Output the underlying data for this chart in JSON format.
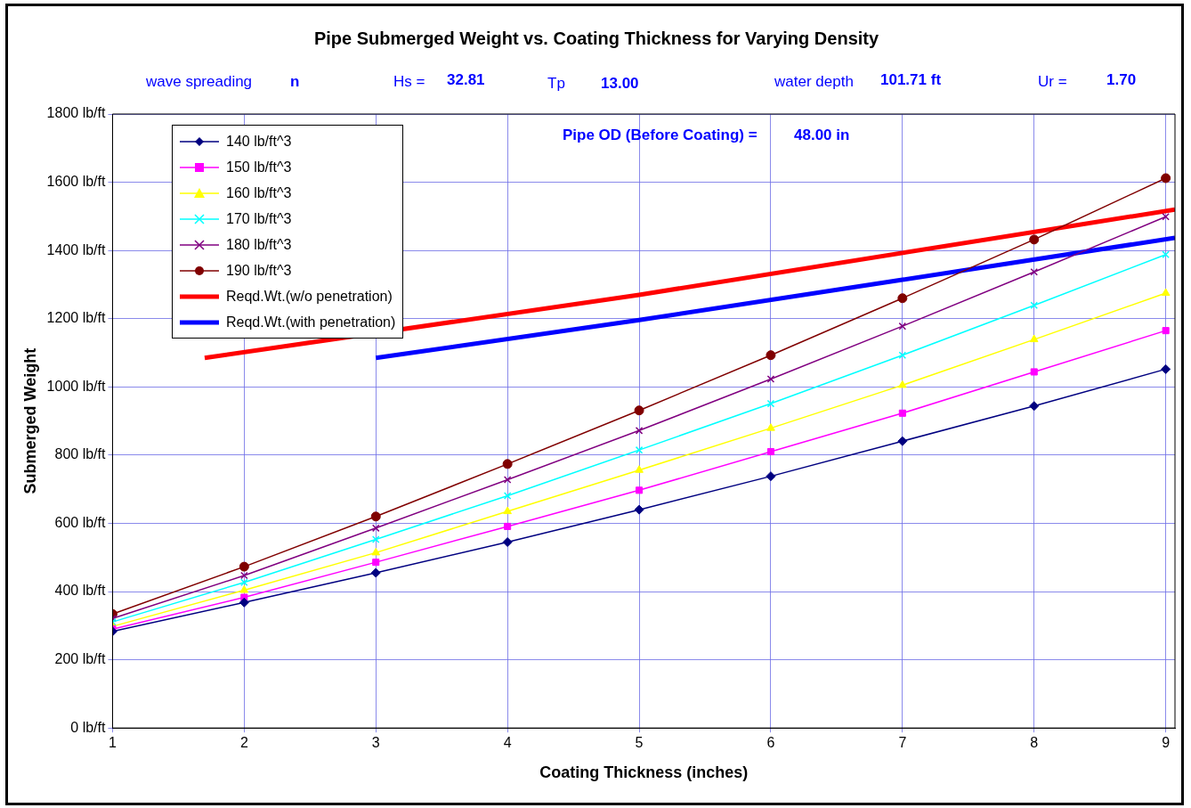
{
  "chart_data": {
    "type": "line",
    "title": "Pipe Submerged Weight vs. Coating Thickness for Varying Density",
    "xlabel": "Coating Thickness (inches)",
    "ylabel": "Submerged Weight",
    "x": [
      1,
      2,
      3,
      4,
      5,
      6,
      7,
      8,
      9
    ],
    "series": [
      {
        "name": "140 lb/ft^3",
        "color": "#000080",
        "marker": "diamond",
        "values": [
          283,
          368,
          455,
          545,
          640,
          738,
          841,
          944,
          1052
        ]
      },
      {
        "name": "150 lb/ft^3",
        "color": "#ff00ff",
        "marker": "square",
        "values": [
          290,
          383,
          486,
          591,
          697,
          810,
          923,
          1044,
          1165
        ]
      },
      {
        "name": "160 lb/ft^3",
        "color": "#ffff00",
        "marker": "triangle",
        "values": [
          298,
          404,
          514,
          635,
          756,
          879,
          1005,
          1139,
          1275
        ]
      },
      {
        "name": "170 lb/ft^3",
        "color": "#00ffff",
        "marker": "cross",
        "values": [
          311,
          427,
          553,
          681,
          815,
          951,
          1093,
          1239,
          1388
        ]
      },
      {
        "name": "180 lb/ft^3",
        "color": "#800080",
        "marker": "cross",
        "values": [
          321,
          447,
          586,
          728,
          872,
          1023,
          1178,
          1337,
          1499
        ]
      },
      {
        "name": "190 lb/ft^3",
        "color": "#800000",
        "marker": "circle",
        "values": [
          334,
          473,
          620,
          774,
          931,
          1093,
          1260,
          1432,
          1612
        ]
      },
      {
        "name": "Reqd.Wt.(w/o penetration)",
        "color": "#ff0000",
        "marker": "none",
        "x": [
          1.7,
          5,
          9.07
        ],
        "values": [
          1085,
          1270,
          1520
        ]
      },
      {
        "name": "Reqd.Wt.(with penetration)",
        "color": "#0000ff",
        "marker": "none",
        "x": [
          3,
          5,
          7,
          9.07
        ],
        "values": [
          1085,
          1196,
          1314,
          1437
        ]
      }
    ],
    "xlim": [
      1,
      9.07
    ],
    "xticks": [
      1,
      2,
      3,
      4,
      5,
      6,
      7,
      8,
      9
    ],
    "ylim": [
      0,
      1800
    ],
    "yticks": [
      {
        "value": 0,
        "label": "0 lb/ft"
      },
      {
        "value": 200,
        "label": "200 lb/ft"
      },
      {
        "value": 400,
        "label": "400 lb/ft"
      },
      {
        "value": 600,
        "label": "600 lb/ft"
      },
      {
        "value": 800,
        "label": "800 lb/ft"
      },
      {
        "value": 1000,
        "label": "1000 lb/ft"
      },
      {
        "value": 1200,
        "label": "1200 lb/ft"
      },
      {
        "value": 1400,
        "label": "1400 lb/ft"
      },
      {
        "value": 1600,
        "label": "1600 lb/ft"
      },
      {
        "value": 1800,
        "label": "1800 lb/ft"
      }
    ],
    "grid": true,
    "legend": "top left",
    "line_style": "solid",
    "annotations": [
      "wave spreading",
      "n",
      "Hs =",
      "32.81",
      "Tp",
      "13.00",
      "water depth",
      "101.71 ft",
      "Ur =",
      "1.70",
      "Pipe OD (Before Coating) =",
      "48.00 in"
    ]
  }
}
